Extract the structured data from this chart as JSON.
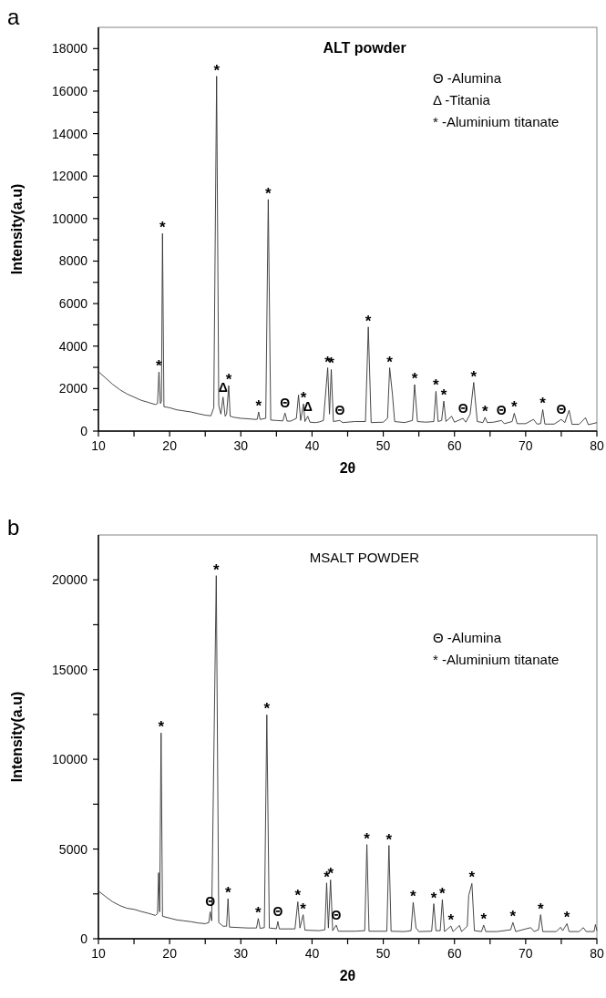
{
  "chart_data": [
    {
      "type": "line",
      "title": "ALT powder",
      "xlabel": "2θ",
      "ylabel": "Intensity(a.u)",
      "xlim": [
        10,
        80
      ],
      "ylim": [
        0,
        19000
      ],
      "xticks": [
        10,
        {
          "value": 15,
          "label": null
        },
        20,
        {
          "value": 25,
          "label": null
        },
        30,
        {
          "value": 35,
          "label": null
        },
        40,
        {
          "value": 45,
          "label": null
        },
        50,
        {
          "value": 55,
          "label": null
        },
        60,
        {
          "value": 65,
          "label": null
        },
        70,
        {
          "value": 75,
          "label": null
        },
        80
      ],
      "yticks": [
        0,
        {
          "value": 1000,
          "label": null
        },
        2000,
        {
          "value": 3000,
          "label": null
        },
        4000,
        {
          "value": 5000,
          "label": null
        },
        6000,
        {
          "value": 7000,
          "label": null
        },
        8000,
        {
          "value": 9000,
          "label": null
        },
        10000,
        {
          "value": 11000,
          "label": null
        },
        12000,
        {
          "value": 13000,
          "label": null
        },
        14000,
        {
          "value": 15000,
          "label": null
        },
        16000,
        {
          "value": 17000,
          "label": null
        },
        18000
      ],
      "series": [
        {
          "color": "#333333",
          "x": [
            10,
            11,
            12,
            13,
            14,
            15,
            16,
            17,
            18,
            18.3,
            18.5,
            18.7,
            18.85,
            19.0,
            19.2,
            20,
            21,
            22,
            23,
            24,
            25,
            25.8,
            26.2,
            26.6,
            26.9,
            27.2,
            27.5,
            27.8,
            28.0,
            28.3,
            28.5,
            29,
            30,
            31,
            32,
            32.3,
            32.5,
            32.7,
            33.5,
            33.85,
            34.2,
            35,
            35.9,
            36.2,
            36.5,
            37,
            37.8,
            38.1,
            38.4,
            38.8,
            39.0,
            39.4,
            39.7,
            40.5,
            41,
            41.6,
            42.2,
            42.45,
            42.7,
            43.0,
            43.9,
            44.3,
            46,
            47.5,
            47.9,
            48.3,
            50,
            50.6,
            50.9,
            51.3,
            51.6,
            53,
            54.1,
            54.4,
            54.8,
            56,
            57.1,
            57.4,
            57.7,
            58.2,
            58.5,
            58.8,
            59.6,
            60,
            61.2,
            61.6,
            62.2,
            62.7,
            63.2,
            64,
            64.3,
            64.6,
            65.5,
            66.6,
            67,
            68.1,
            68.4,
            68.8,
            70,
            71.1,
            71.6,
            72.1,
            72.4,
            72.7,
            74,
            75.0,
            75.5,
            76.1,
            76.5,
            77.5,
            78.4,
            78.8,
            80
          ],
          "values": [
            2800,
            2500,
            2200,
            1950,
            1750,
            1600,
            1450,
            1350,
            1250,
            1300,
            2780,
            1300,
            1400,
            9300,
            1150,
            1100,
            1000,
            950,
            900,
            820,
            750,
            720,
            1100,
            16700,
            1200,
            800,
            1600,
            700,
            800,
            2140,
            700,
            650,
            600,
            580,
            550,
            560,
            900,
            550,
            600,
            10900,
            520,
            500,
            480,
            850,
            470,
            470,
            600,
            1700,
            500,
            1280,
            450,
            700,
            420,
            400,
            430,
            500,
            2980,
            800,
            2900,
            450,
            500,
            400,
            450,
            450,
            4900,
            400,
            420,
            600,
            2980,
            1700,
            450,
            400,
            500,
            2190,
            450,
            420,
            450,
            1870,
            450,
            500,
            1410,
            450,
            700,
            420,
            600,
            420,
            800,
            2290,
            450,
            400,
            650,
            400,
            420,
            500,
            350,
            450,
            840,
            350,
            350,
            550,
            330,
            350,
            1010,
            330,
            330,
            550,
            400,
            980,
            320,
            320,
            630,
            300,
            400
          ]
        }
      ],
      "annotations": [
        "a",
        "Θ -Alumina",
        "Δ -Titania",
        "* -Aluminium titanate",
        {
          "text": "*",
          "x": 18.5,
          "y": 2780
        },
        {
          "text": "*",
          "x": 19.0,
          "y": 9300
        },
        {
          "text": "*",
          "x": 26.6,
          "y": 16700
        },
        {
          "text": "Δ",
          "x": 27.5,
          "y": 1600
        },
        {
          "text": "*",
          "x": 28.3,
          "y": 2140
        },
        {
          "text": "*",
          "x": 32.5,
          "y": 900
        },
        {
          "text": "*",
          "x": 33.85,
          "y": 10900
        },
        {
          "text": "Θ",
          "x": 36.2,
          "y": 850
        },
        {
          "text": "*",
          "x": 38.8,
          "y": 1280
        },
        {
          "text": "Δ",
          "x": 39.4,
          "y": 700
        },
        {
          "text": "*",
          "x": 42.2,
          "y": 2980
        },
        {
          "text": "*",
          "x": 42.7,
          "y": 2900
        },
        {
          "text": "Θ",
          "x": 43.9,
          "y": 500
        },
        {
          "text": "*",
          "x": 47.9,
          "y": 4900
        },
        {
          "text": "*",
          "x": 50.9,
          "y": 2980
        },
        {
          "text": "*",
          "x": 54.4,
          "y": 2190
        },
        {
          "text": "*",
          "x": 57.4,
          "y": 1870
        },
        {
          "text": "*",
          "x": 58.5,
          "y": 1410
        },
        {
          "text": "Θ",
          "x": 61.2,
          "y": 600
        },
        {
          "text": "*",
          "x": 62.7,
          "y": 2290
        },
        {
          "text": "*",
          "x": 64.3,
          "y": 650
        },
        {
          "text": "Θ",
          "x": 66.6,
          "y": 500
        },
        {
          "text": "*",
          "x": 68.4,
          "y": 840
        },
        {
          "text": "*",
          "x": 72.4,
          "y": 1010
        },
        {
          "text": "Θ",
          "x": 75.0,
          "y": 550
        }
      ]
    },
    {
      "type": "line",
      "title": "MSALT POWDER",
      "xlabel": "2θ",
      "ylabel": "Intensity(a.u)",
      "xlim": [
        10,
        80
      ],
      "ylim": [
        0,
        22500
      ],
      "xticks": [
        10,
        {
          "value": 15,
          "label": null
        },
        20,
        {
          "value": 25,
          "label": null
        },
        30,
        {
          "value": 35,
          "label": null
        },
        40,
        {
          "value": 45,
          "label": null
        },
        50,
        {
          "value": 55,
          "label": null
        },
        60,
        {
          "value": 65,
          "label": null
        },
        70,
        {
          "value": 75,
          "label": null
        },
        80
      ],
      "yticks": [
        0,
        {
          "value": 2500,
          "label": null
        },
        5000,
        {
          "value": 7500,
          "label": null
        },
        10000,
        {
          "value": 12500,
          "label": null
        },
        15000,
        {
          "value": 17500,
          "label": null
        },
        20000
      ],
      "series": [
        {
          "color": "#333333",
          "x": [
            10,
            11,
            12,
            13,
            14,
            15,
            16,
            17,
            18,
            18.3,
            18.45,
            18.6,
            18.8,
            19.0,
            20,
            21,
            22,
            23,
            24,
            25,
            25.5,
            25.7,
            25.9,
            26.55,
            26.9,
            27.5,
            28.0,
            28.2,
            28.4,
            30,
            31,
            32.2,
            32.45,
            32.7,
            33.3,
            33.65,
            34.0,
            35.0,
            35.2,
            35.4,
            37.6,
            38.0,
            38.3,
            38.75,
            39.0,
            41,
            41.8,
            42.05,
            42.3,
            42.6,
            42.9,
            43.4,
            43.7,
            46,
            47.4,
            47.7,
            48.0,
            50.5,
            50.8,
            51.1,
            53,
            53.9,
            54.2,
            54.6,
            55,
            56.8,
            57.1,
            57.4,
            58.0,
            58.3,
            58.6,
            59.5,
            59.8,
            60.7,
            61.0,
            61.8,
            62.0,
            62.45,
            62.8,
            63.8,
            64.1,
            64.4,
            66,
            67.9,
            68.2,
            68.6,
            70.7,
            71.2,
            71.8,
            72.1,
            72.4,
            74.3,
            74.9,
            75.2,
            75.8,
            76.1,
            77.5,
            78.1,
            78.5,
            79.6,
            79.8,
            80
          ],
          "values": [
            2660,
            2350,
            2060,
            1850,
            1700,
            1640,
            1520,
            1420,
            1300,
            1400,
            3680,
            1500,
            11470,
            1250,
            1150,
            1050,
            1000,
            950,
            880,
            840,
            900,
            1500,
            1000,
            20230,
            900,
            700,
            700,
            2230,
            650,
            620,
            600,
            600,
            1130,
            580,
            620,
            12480,
            600,
            560,
            960,
            550,
            550,
            2060,
            600,
            1340,
            480,
            450,
            500,
            3110,
            600,
            3280,
            450,
            760,
            420,
            420,
            450,
            5250,
            420,
            420,
            5200,
            420,
            400,
            450,
            2030,
            600,
            400,
            420,
            1950,
            450,
            450,
            2180,
            400,
            710,
            400,
            740,
            400,
            700,
            2400,
            3080,
            450,
            400,
            760,
            400,
            400,
            500,
            910,
            400,
            620,
            400,
            500,
            1340,
            400,
            400,
            640,
            450,
            840,
            400,
            400,
            620,
            400,
            400,
            790,
            450
          ]
        }
      ],
      "annotations": [
        "b",
        "Θ -Alumina",
        "* -Aluminium titanate",
        {
          "text": "*",
          "x": 18.8,
          "y": 11470
        },
        {
          "text": "Θ",
          "x": 25.7,
          "y": 1500
        },
        {
          "text": "*",
          "x": 26.55,
          "y": 20230
        },
        {
          "text": "*",
          "x": 28.2,
          "y": 2230
        },
        {
          "text": "*",
          "x": 32.45,
          "y": 1130
        },
        {
          "text": "*",
          "x": 33.65,
          "y": 12480
        },
        {
          "text": "Θ",
          "x": 35.2,
          "y": 960
        },
        {
          "text": "*",
          "x": 38.0,
          "y": 2060
        },
        {
          "text": "*",
          "x": 38.75,
          "y": 1340
        },
        {
          "text": "*",
          "x": 42.05,
          "y": 3110
        },
        {
          "text": "*",
          "x": 42.6,
          "y": 3280
        },
        {
          "text": "Θ",
          "x": 43.4,
          "y": 760
        },
        {
          "text": "*",
          "x": 47.7,
          "y": 5250
        },
        {
          "text": "*",
          "x": 50.8,
          "y": 5200
        },
        {
          "text": "*",
          "x": 54.2,
          "y": 2030
        },
        {
          "text": "*",
          "x": 57.1,
          "y": 1950
        },
        {
          "text": "*",
          "x": 58.3,
          "y": 2180
        },
        {
          "text": "*",
          "x": 59.5,
          "y": 710
        },
        {
          "text": "*",
          "x": 62.45,
          "y": 3080
        },
        {
          "text": "*",
          "x": 64.1,
          "y": 760
        },
        {
          "text": "*",
          "x": 68.2,
          "y": 910
        },
        {
          "text": "*",
          "x": 72.1,
          "y": 1340
        },
        {
          "text": "*",
          "x": 75.8,
          "y": 840
        }
      ]
    }
  ]
}
